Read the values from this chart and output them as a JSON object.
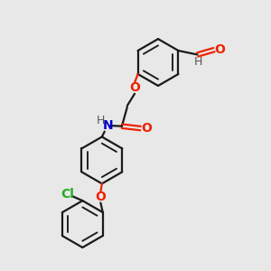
{
  "background_color": "#e8e8e8",
  "bond_color": "#1a1a1a",
  "oxygen_color": "#ee2200",
  "nitrogen_color": "#0000cc",
  "chlorine_color": "#22aa22",
  "hydrogen_color": "#555555",
  "bond_width": 1.6,
  "figsize": [
    3.0,
    3.0
  ],
  "dpi": 100,
  "xlim": [
    0,
    10
  ],
  "ylim": [
    0,
    10
  ]
}
